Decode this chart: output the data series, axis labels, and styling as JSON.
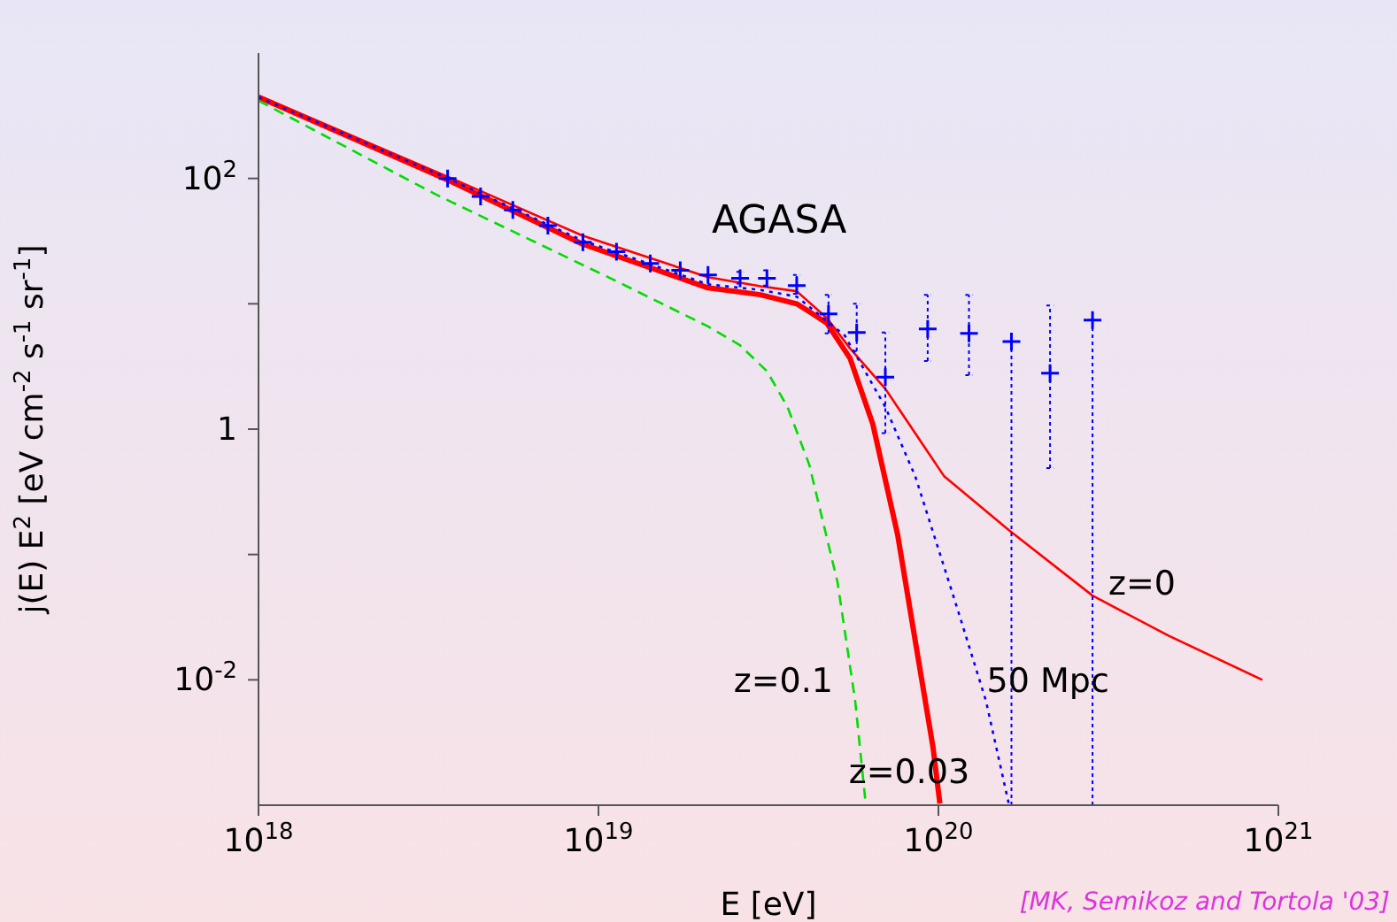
{
  "chart_data": {
    "type": "line",
    "xlabel": "E [eV]",
    "ylabel": "j(E) E$^{2}$ [eV cm$^{-2}$ s$^{-1}$ sr$^{-1}$]",
    "log": "xy",
    "xlim": [
      1e+18,
      1e+21
    ],
    "xticks": [
      {
        "value": 1e+18,
        "label": "10$^{18}$"
      },
      {
        "value": 1e+19,
        "label": "10$^{19}$"
      },
      {
        "value": 1e+20,
        "label": "10$^{20}$"
      },
      {
        "value": 1e+21,
        "label": "10$^{21}$"
      }
    ],
    "ylim": [
      0.001,
      1000
    ],
    "yticks": [
      {
        "value": 0.01,
        "label": "10$^{-2}$"
      },
      {
        "value": 0.1,
        "label": null
      },
      {
        "value": 1,
        "label": "1"
      },
      {
        "value": 10,
        "label": null
      },
      {
        "value": 100,
        "label": "10$^{2}$"
      }
    ],
    "series": [
      {
        "name": "z=0",
        "color": "#ff0000",
        "line_style": "solid",
        "x": [
          1e+18,
          3.61e+18,
          8.97e+18,
          2.1e+19,
          3e+19,
          3.83e+19,
          4.7e+19,
          5.5e+19,
          6.98e+19,
          1.04e+20,
          1.61e+20,
          2.84e+20,
          4.75e+20,
          8.97e+20
        ],
        "values": [
          459,
          103,
          35,
          16.3,
          13.8,
          12.6,
          7.7,
          4.4,
          2.1,
          0.42,
          0.157,
          0.047,
          0.0225,
          0.01
        ]
      },
      {
        "name": "z=0.03",
        "color": "#ff0000",
        "line_style": "solid",
        "x": [
          1e+18,
          3.61e+18,
          8.97e+18,
          2.1e+19,
          3e+19,
          3.83e+19,
          4.3e+19,
          4.7e+19,
          5.5e+19,
          6.41e+19,
          7.59e+19,
          8.55e+19,
          9.64e+19,
          1.01e+20
        ],
        "values": [
          445,
          97,
          30,
          13.4,
          11.8,
          10,
          8.2,
          7,
          3.66,
          1.1,
          0.143,
          0.0204,
          0.0029,
          0.00103
        ]
      },
      {
        "name": "z=0.1",
        "color": "#00dd00",
        "line_style": "dashed",
        "x": [
          1e+18,
          3.32e+18,
          1.1e+19,
          2.1e+19,
          2.6e+19,
          3.13e+19,
          3.6e+19,
          4.17e+19,
          5.05e+19,
          5.69e+19,
          6.11e+19
        ],
        "values": [
          417,
          74.6,
          15.7,
          6.6,
          4.7,
          2.9,
          1.5,
          0.52,
          0.06,
          0.0068,
          0.00103
        ]
      },
      {
        "name": "50 Mpc",
        "color": "#0000ff",
        "line_style": "dotted",
        "x": [
          1e+18,
          3.61e+18,
          8.97e+18,
          2.1e+19,
          3e+19,
          3.83e+19,
          5.3e+19,
          6.98e+19,
          8.55e+19,
          1.13e+20,
          1.38e+20,
          1.61e+20
        ],
        "values": [
          445,
          100,
          32,
          14.3,
          12.9,
          11.4,
          5.6,
          1.5,
          0.42,
          0.039,
          0.0068,
          0.00103
        ]
      },
      {
        "type": "scatter",
        "name": "AGASA",
        "color": "#0000ff",
        "marker": "cross",
        "x": [
          3.6e+18,
          4.5e+18,
          5.6e+18,
          7.1e+18,
          9e+18,
          1.13e+19,
          1.42e+19,
          1.74e+19,
          2.1e+19,
          2.61e+19,
          3.13e+19,
          3.83e+19,
          4.75e+19,
          5.75e+19,
          6.98e+19,
          9.3e+19,
          1.23e+20,
          1.64e+20,
          2.13e+20,
          2.84e+20
        ],
        "values": [
          100,
          72,
          56,
          42,
          31,
          26,
          21,
          18.5,
          17,
          16,
          16,
          14,
          8.3,
          5.9,
          2.6,
          6.3,
          5.8,
          5.0,
          2.8,
          7.4
        ],
        "errors": [
          null,
          null,
          null,
          null,
          null,
          null,
          null,
          null,
          null,
          [
            14.5,
            18
          ],
          [
            14,
            18.5
          ],
          [
            12,
            17
          ],
          [
            5.8,
            11.8
          ],
          [
            4.2,
            10
          ],
          [
            0.93,
            5.9
          ],
          [
            3.5,
            11.8
          ],
          [
            2.7,
            11.8
          ],
          [
            0.001,
            5.0
          ],
          [
            0.49,
            9.7
          ],
          [
            0.001,
            7.4
          ]
        ]
      }
    ],
    "annotations": [
      "[MK, Semikoz and Tortola '03]"
    ]
  }
}
